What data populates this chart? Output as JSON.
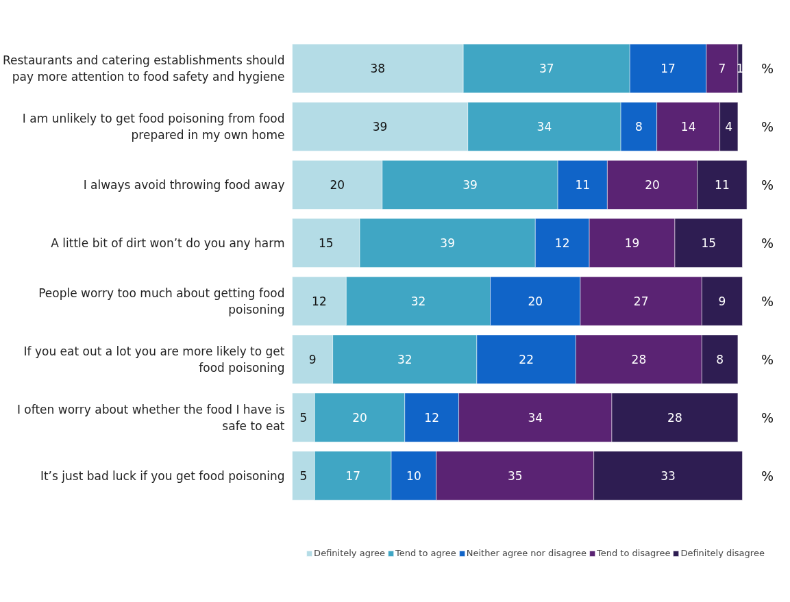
{
  "chart_data": {
    "type": "bar",
    "orientation": "horizontal",
    "stacked": true,
    "data_labels": true,
    "grid": false,
    "legend": "bottom",
    "categories": [
      "Restaurants and catering establishments should pay more attention to food safety and hygiene",
      "I am unlikely to get food poisoning from food prepared in my own home",
      "I always avoid throwing food away",
      "A little bit of dirt won’t do you any harm",
      "People worry too much about getting food poisoning",
      "If you eat out a lot you are more likely to get food poisoning",
      "I often worry about whether the food I have is safe to eat",
      "It’s just bad luck if you get food poisoning"
    ],
    "series": [
      {
        "name": "Definitely agree",
        "color": "#b4dce6",
        "values": [
          38,
          39,
          20,
          15,
          12,
          9,
          5,
          5
        ]
      },
      {
        "name": "Tend to agree",
        "color": "#40a6c4",
        "values": [
          37,
          34,
          39,
          39,
          32,
          32,
          20,
          17
        ]
      },
      {
        "name": "Neither agree nor disagree",
        "color": "#1064c8",
        "values": [
          17,
          8,
          11,
          12,
          20,
          22,
          12,
          10
        ]
      },
      {
        "name": "Tend to disagree",
        "color": "#5a2373",
        "values": [
          7,
          14,
          20,
          19,
          27,
          28,
          34,
          35
        ]
      },
      {
        "name": "Definitely disagree",
        "color": "#2e1d52",
        "values": [
          1,
          4,
          11,
          15,
          9,
          8,
          28,
          33
        ]
      }
    ],
    "annotations": [
      "%",
      "%",
      "%",
      "%",
      "%",
      "%",
      "%",
      "%"
    ]
  }
}
